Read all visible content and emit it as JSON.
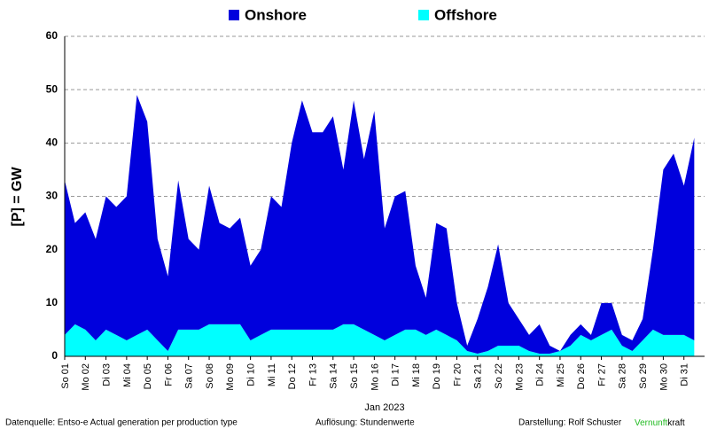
{
  "chart_data": {
    "type": "stacked-area",
    "y_label": "[P]  =  GW",
    "x_label": "Jan 2023",
    "categories": [
      "So 01",
      null,
      "Mo 02",
      null,
      "Di 03",
      null,
      "Mi 04",
      null,
      "Do 05",
      null,
      "Fr 06",
      null,
      "Sa 07",
      null,
      "So 08",
      null,
      "Mo 09",
      null,
      "Di 10",
      null,
      "Mi 11",
      null,
      "Do 12",
      null,
      "Fr 13",
      null,
      "Sa 14",
      null,
      "So 15",
      null,
      "Mo 16",
      null,
      "Di 17",
      null,
      "Mi 18",
      null,
      "Do 19",
      null,
      "Fr 20",
      null,
      "Sa 21",
      null,
      "So 22",
      null,
      "Mo 23",
      null,
      "Di 24",
      null,
      "Mi 25",
      null,
      "Do 26",
      null,
      "Fr 27",
      null,
      "Sa 28",
      null,
      "So 29",
      null,
      "Mo 30",
      null,
      "Di 31",
      null
    ],
    "series": [
      {
        "name": "Offshore",
        "color": "#00ffff",
        "values": [
          4,
          6,
          5,
          3,
          5,
          4,
          3,
          4,
          5,
          3,
          1,
          5,
          5,
          5,
          6,
          6,
          6,
          6,
          3,
          4,
          5,
          5,
          5,
          5,
          5,
          5,
          5,
          6,
          6,
          5,
          4,
          3,
          4,
          5,
          5,
          4,
          5,
          4,
          3,
          1,
          0.5,
          1,
          2,
          2,
          2,
          1,
          0.5,
          0.5,
          1,
          2,
          4,
          3,
          4,
          5,
          2,
          1,
          3,
          5,
          4,
          4,
          4,
          3
        ]
      },
      {
        "name": "Onshore",
        "color": "#0000dd",
        "values": [
          29,
          19,
          22,
          19,
          25,
          24,
          27,
          45,
          39,
          19,
          14,
          28,
          17,
          15,
          26,
          19,
          18,
          20,
          14,
          16,
          25,
          23,
          35,
          43,
          37,
          37,
          40,
          29,
          42,
          32,
          42,
          21,
          26,
          26,
          12,
          7,
          20,
          20,
          7,
          1,
          6.5,
          12,
          19,
          8,
          5,
          3,
          5.5,
          1.5,
          0,
          2,
          2,
          1,
          6,
          5,
          2,
          2,
          4,
          15,
          31,
          34,
          28,
          38
        ]
      }
    ],
    "ylim": [
      0,
      60
    ],
    "yticks": [
      0,
      10,
      20,
      30,
      40,
      50,
      60
    ],
    "grid": true
  },
  "footer": {
    "source": "Datenquelle: Entso-e  Actual generation per production type",
    "resolution": "Auflösung: Stundenwerte",
    "author": "Darstellung:  Rolf Schuster",
    "brand_green": "Vernunft",
    "brand_black": "kraft"
  }
}
